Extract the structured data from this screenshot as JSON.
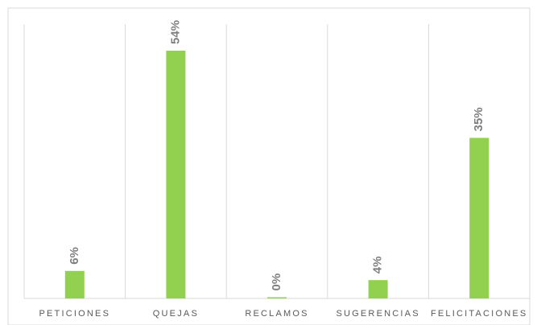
{
  "chart_data": {
    "type": "bar",
    "categories": [
      "PETICIONES",
      "QUEJAS",
      "RECLAMOS",
      "SUGERENCIAS",
      "FELICITACIONES"
    ],
    "values": [
      6,
      54,
      0,
      4,
      35
    ],
    "value_labels": [
      "6%",
      "54%",
      "0%",
      "4%",
      "35%"
    ],
    "color": "#92d050"
  }
}
